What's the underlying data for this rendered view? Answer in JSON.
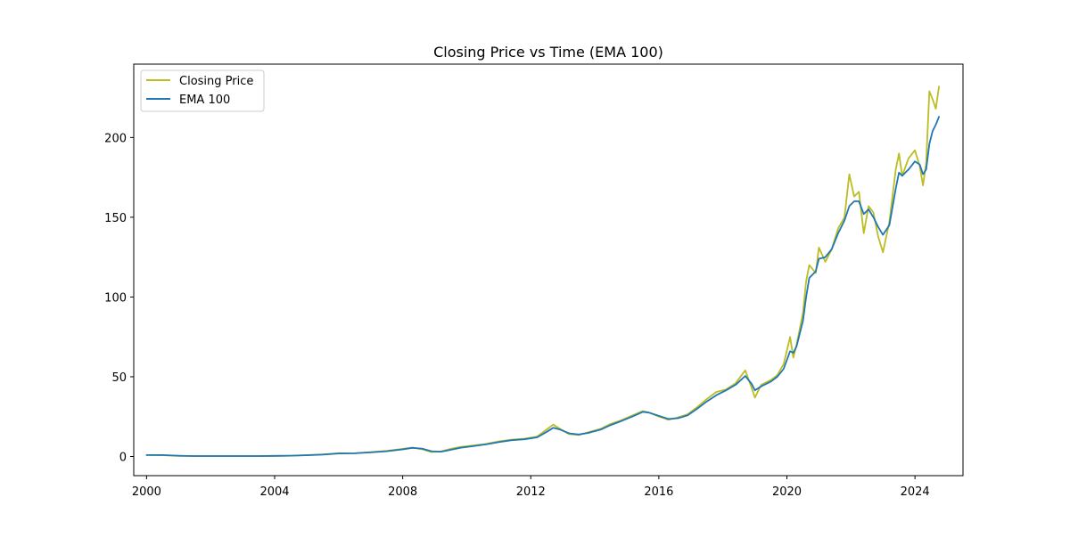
{
  "chart_data": {
    "type": "line",
    "title": "Closing Price vs Time (EMA 100)",
    "xlabel": "",
    "ylabel": "",
    "xlim": [
      1999.6,
      2025.5
    ],
    "ylim": [
      -12,
      246
    ],
    "x_ticks": [
      2000,
      2004,
      2008,
      2012,
      2016,
      2020,
      2024
    ],
    "x_tick_labels": [
      "2000",
      "2004",
      "2008",
      "2012",
      "2016",
      "2020",
      "2024"
    ],
    "y_ticks": [
      0,
      50,
      100,
      150,
      200
    ],
    "y_tick_labels": [
      "0",
      "50",
      "100",
      "150",
      "200"
    ],
    "grid": false,
    "legend_position": "top-left",
    "series": [
      {
        "name": "Closing Price",
        "color": "#bcbd22",
        "x": [
          2000.0,
          2000.5,
          2001.0,
          2001.5,
          2002.0,
          2002.5,
          2003.0,
          2003.5,
          2004.0,
          2004.5,
          2005.0,
          2005.5,
          2006.0,
          2006.5,
          2007.0,
          2007.5,
          2008.0,
          2008.3,
          2008.6,
          2008.9,
          2009.2,
          2009.5,
          2009.8,
          2010.2,
          2010.6,
          2011.0,
          2011.4,
          2011.8,
          2012.2,
          2012.5,
          2012.7,
          2012.9,
          2013.2,
          2013.5,
          2013.8,
          2014.2,
          2014.5,
          2014.8,
          2015.2,
          2015.5,
          2015.7,
          2016.0,
          2016.3,
          2016.6,
          2016.9,
          2017.2,
          2017.5,
          2017.8,
          2018.1,
          2018.4,
          2018.7,
          2018.9,
          2019.0,
          2019.2,
          2019.5,
          2019.7,
          2019.9,
          2020.1,
          2020.2,
          2020.3,
          2020.5,
          2020.6,
          2020.7,
          2020.9,
          2021.0,
          2021.2,
          2021.4,
          2021.6,
          2021.8,
          2021.95,
          2022.1,
          2022.25,
          2022.4,
          2022.55,
          2022.7,
          2022.85,
          2023.0,
          2023.2,
          2023.4,
          2023.5,
          2023.6,
          2023.8,
          2024.0,
          2024.15,
          2024.25,
          2024.35,
          2024.45,
          2024.55,
          2024.65,
          2024.75
        ],
        "values": [
          0.9,
          0.8,
          0.4,
          0.3,
          0.3,
          0.3,
          0.3,
          0.3,
          0.4,
          0.5,
          0.9,
          1.3,
          2.1,
          2.0,
          2.8,
          3.5,
          4.8,
          5.6,
          4.6,
          2.8,
          3.2,
          4.8,
          6.0,
          6.9,
          7.9,
          9.5,
          10.5,
          11.2,
          12.5,
          17.0,
          20.0,
          17.5,
          14.0,
          13.5,
          15.2,
          17.5,
          20.5,
          22.5,
          26.0,
          28.5,
          27.5,
          25.0,
          23.0,
          24.5,
          26.5,
          31.0,
          36.0,
          40.5,
          42.0,
          46.0,
          54.0,
          43.0,
          37.0,
          45.0,
          48.0,
          51.0,
          58.0,
          75.0,
          62.0,
          70.0,
          90.0,
          110.0,
          120.0,
          115.0,
          131.0,
          122.0,
          130.0,
          143.0,
          150.0,
          177.0,
          163.0,
          166.0,
          140.0,
          157.0,
          153.0,
          138.0,
          128.0,
          147.0,
          180.0,
          190.0,
          176.0,
          187.0,
          192.0,
          182.0,
          170.0,
          184.0,
          229.0,
          224.0,
          218.0,
          232.0
        ]
      },
      {
        "name": "EMA 100",
        "color": "#1f77b4",
        "x": [
          2000.0,
          2000.5,
          2001.0,
          2001.5,
          2002.0,
          2002.5,
          2003.0,
          2003.5,
          2004.0,
          2004.5,
          2005.0,
          2005.5,
          2006.0,
          2006.5,
          2007.0,
          2007.5,
          2008.0,
          2008.3,
          2008.6,
          2008.9,
          2009.2,
          2009.5,
          2009.8,
          2010.2,
          2010.6,
          2011.0,
          2011.4,
          2011.8,
          2012.2,
          2012.5,
          2012.7,
          2012.9,
          2013.2,
          2013.5,
          2013.8,
          2014.2,
          2014.5,
          2014.8,
          2015.2,
          2015.5,
          2015.7,
          2016.0,
          2016.3,
          2016.6,
          2016.9,
          2017.2,
          2017.5,
          2017.8,
          2018.1,
          2018.4,
          2018.7,
          2018.9,
          2019.0,
          2019.2,
          2019.5,
          2019.7,
          2019.9,
          2020.1,
          2020.2,
          2020.3,
          2020.5,
          2020.6,
          2020.7,
          2020.9,
          2021.0,
          2021.2,
          2021.4,
          2021.6,
          2021.8,
          2021.95,
          2022.1,
          2022.25,
          2022.4,
          2022.55,
          2022.7,
          2022.85,
          2023.0,
          2023.2,
          2023.4,
          2023.5,
          2023.6,
          2023.8,
          2024.0,
          2024.15,
          2024.25,
          2024.35,
          2024.45,
          2024.55,
          2024.65,
          2024.75
        ],
        "values": [
          0.9,
          0.9,
          0.5,
          0.3,
          0.3,
          0.3,
          0.3,
          0.3,
          0.4,
          0.5,
          0.8,
          1.2,
          1.9,
          2.0,
          2.6,
          3.3,
          4.5,
          5.4,
          5.0,
          3.3,
          3.0,
          4.2,
          5.5,
          6.5,
          7.6,
          9.0,
          10.2,
          10.8,
          12.0,
          15.5,
          18.0,
          17.0,
          14.5,
          13.8,
          14.8,
          17.0,
          19.8,
          22.0,
          25.3,
          28.0,
          27.5,
          25.5,
          23.5,
          24.0,
          25.8,
          30.0,
          34.5,
          38.5,
          41.5,
          45.0,
          50.5,
          45.5,
          41.5,
          44.0,
          47.0,
          50.0,
          55.0,
          66.0,
          65.0,
          69.0,
          85.0,
          100.0,
          112.0,
          116.0,
          124.0,
          125.0,
          130.0,
          140.0,
          148.0,
          157.0,
          160.0,
          160.0,
          152.0,
          155.0,
          150.0,
          144.0,
          139.0,
          145.0,
          168.0,
          178.0,
          176.0,
          180.0,
          185.0,
          183.0,
          177.0,
          180.0,
          196.0,
          204.0,
          208.0,
          213.0
        ]
      }
    ]
  }
}
